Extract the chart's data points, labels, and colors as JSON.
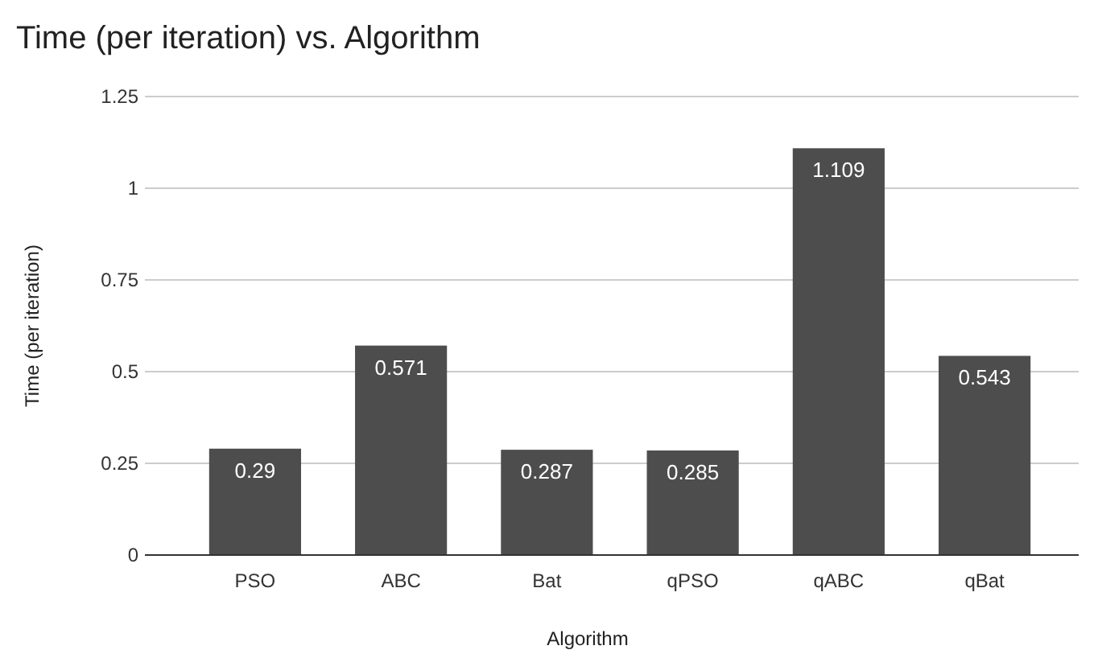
{
  "chart_data": {
    "type": "bar",
    "title": "Time (per iteration) vs. Algorithm",
    "xlabel": "Algorithm",
    "ylabel": "Time (per iteration)",
    "categories": [
      "PSO",
      "ABC",
      "Bat",
      "qPSO",
      "qABC",
      "qBat"
    ],
    "values": [
      0.29,
      0.571,
      0.287,
      0.285,
      1.109,
      0.543
    ],
    "color": "#4d4d4d",
    "ylim": [
      0,
      1.25
    ],
    "yticks": [
      0,
      0.25,
      0.5,
      0.75,
      1,
      1.25
    ],
    "grid": "y",
    "data_labels": true
  }
}
